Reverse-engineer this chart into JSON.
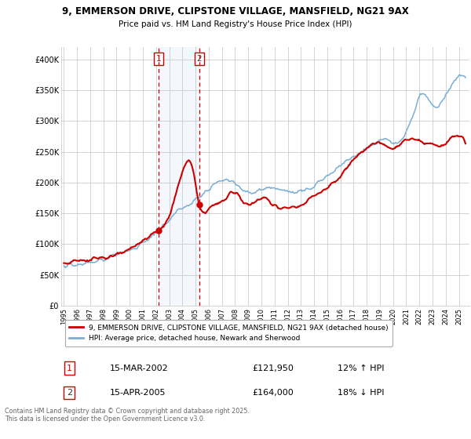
{
  "title1": "9, EMMERSON DRIVE, CLIPSTONE VILLAGE, MANSFIELD, NG21 9AX",
  "title2": "Price paid vs. HM Land Registry's House Price Index (HPI)",
  "sale1_date": "15-MAR-2002",
  "sale1_price": 121950,
  "sale1_hpi": "12% ↑ HPI",
  "sale2_date": "15-APR-2005",
  "sale2_price": 164000,
  "sale2_hpi": "18% ↓ HPI",
  "legend1": "9, EMMERSON DRIVE, CLIPSTONE VILLAGE, MANSFIELD, NG21 9AX (detached house)",
  "legend2": "HPI: Average price, detached house, Newark and Sherwood",
  "footer": "Contains HM Land Registry data © Crown copyright and database right 2025.\nThis data is licensed under the Open Government Licence v3.0.",
  "line_color_red": "#cc0000",
  "line_color_blue": "#7aadd4",
  "vline_color": "#cc0000",
  "bg_color": "#ffffff",
  "grid_color": "#cccccc",
  "ylim": [
    0,
    420000
  ],
  "yticks": [
    0,
    50000,
    100000,
    150000,
    200000,
    250000,
    300000,
    350000,
    400000
  ],
  "sale1_x": 2002.21,
  "sale2_x": 2005.29,
  "xmin": 1994.8,
  "xmax": 2025.8
}
